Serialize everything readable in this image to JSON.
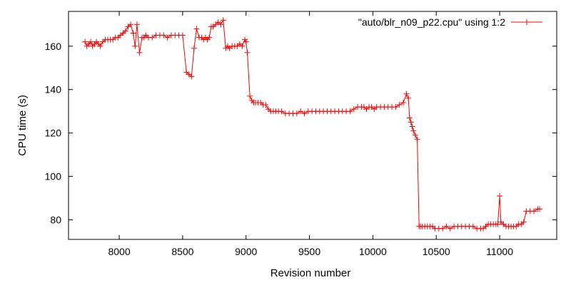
{
  "chart_data": {
    "type": "line",
    "xlabel": "Revision number",
    "ylabel": "CPU time (s)",
    "xlim": [
      7600,
      11450
    ],
    "ylim": [
      71,
      176
    ],
    "x_ticks": [
      8000,
      8500,
      9000,
      9500,
      10000,
      10500,
      11000
    ],
    "y_ticks": [
      80,
      100,
      120,
      140,
      160
    ],
    "grid": false,
    "legend_position": "top-right",
    "series": [
      {
        "name": "\"auto/blr_n09_p22.cpu\" using 1:2",
        "color": "#ff0000",
        "marker": "plus",
        "x": [
          7730,
          7745,
          7760,
          7775,
          7790,
          7805,
          7820,
          7835,
          7850,
          7870,
          7890,
          7910,
          7930,
          7950,
          7970,
          7990,
          8010,
          8030,
          8050,
          8070,
          8090,
          8110,
          8125,
          8140,
          8160,
          8180,
          8195,
          8210,
          8230,
          8260,
          8290,
          8320,
          8350,
          8380,
          8410,
          8440,
          8470,
          8500,
          8530,
          8550,
          8570,
          8590,
          8610,
          8630,
          8650,
          8665,
          8680,
          8695,
          8710,
          8725,
          8740,
          8760,
          8780,
          8800,
          8820,
          8840,
          8855,
          8870,
          8890,
          8910,
          8930,
          8950,
          8970,
          8990,
          9000,
          9010,
          9030,
          9045,
          9060,
          9075,
          9095,
          9115,
          9135,
          9155,
          9175,
          9195,
          9215,
          9235,
          9255,
          9280,
          9310,
          9340,
          9370,
          9400,
          9430,
          9460,
          9490,
          9520,
          9550,
          9580,
          9610,
          9640,
          9670,
          9700,
          9730,
          9760,
          9790,
          9820,
          9850,
          9880,
          9910,
          9930,
          9950,
          9970,
          9990,
          10010,
          10030,
          10060,
          10090,
          10120,
          10150,
          10180,
          10210,
          10240,
          10265,
          10280,
          10290,
          10300,
          10310,
          10320,
          10335,
          10350,
          10365,
          10375,
          10390,
          10410,
          10430,
          10450,
          10470,
          10490,
          10520,
          10550,
          10580,
          10610,
          10640,
          10670,
          10700,
          10730,
          10760,
          10790,
          10820,
          10850,
          10870,
          10890,
          10910,
          10930,
          10950,
          10970,
          10985,
          11000,
          11010,
          11030,
          11050,
          11070,
          11090,
          11110,
          11130,
          11150,
          11170,
          11190,
          11210,
          11240,
          11270,
          11300,
          11315
        ],
        "y": [
          162,
          160,
          161,
          162,
          160,
          161,
          162,
          161,
          160,
          162,
          163,
          163,
          163,
          163,
          164,
          164,
          165,
          166,
          167,
          169,
          170,
          166,
          160,
          170,
          157,
          164,
          164,
          165,
          164,
          164,
          165,
          165,
          165,
          164,
          165,
          165,
          165,
          165,
          148,
          147,
          146,
          159,
          168,
          164,
          164,
          163,
          164,
          163,
          164,
          169,
          169,
          170,
          171,
          170,
          172,
          159,
          160,
          159,
          160,
          160,
          160,
          161,
          160,
          163,
          162,
          157,
          137,
          135,
          134,
          134,
          134,
          134,
          133,
          133,
          131,
          130,
          130,
          130,
          130,
          130,
          129,
          129,
          129,
          129,
          130,
          129,
          130,
          130,
          130,
          130,
          130,
          130,
          130,
          130,
          130,
          130,
          130,
          130,
          131,
          132,
          132,
          132,
          131,
          132,
          132,
          131,
          132,
          132,
          132,
          132,
          132,
          132,
          133,
          134,
          138,
          136,
          127,
          125,
          123,
          121,
          119,
          117,
          77,
          77,
          77,
          77,
          77,
          77,
          77,
          76,
          76,
          76,
          77,
          76,
          77,
          77,
          77,
          77,
          77,
          77,
          76,
          76,
          76,
          77,
          78,
          78,
          78,
          78,
          78,
          91,
          79,
          78,
          77,
          77,
          77,
          77,
          77,
          78,
          78,
          79,
          84,
          84,
          84,
          85,
          85
        ]
      }
    ]
  }
}
